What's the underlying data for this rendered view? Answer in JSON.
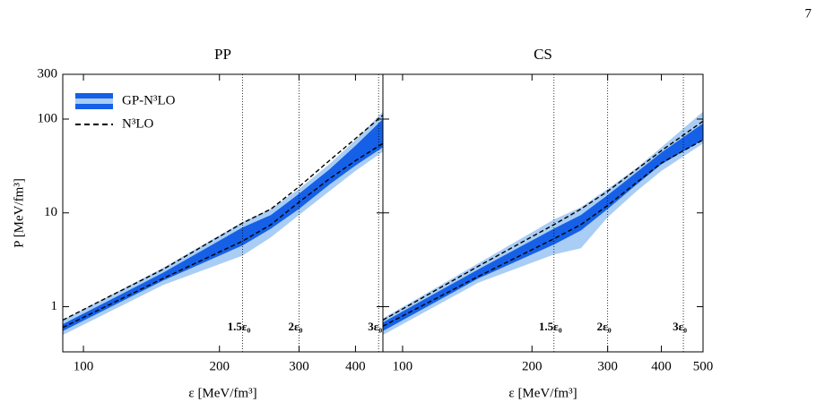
{
  "page_number": "7",
  "chart_data": [
    {
      "type": "band",
      "title": "PP",
      "xlabel": "ε [MeV/fm³]",
      "ylabel": "P [MeV/fm³]",
      "log_x": true,
      "log_y": true,
      "xlim": [
        90,
        460
      ],
      "ylim": [
        0.33,
        300
      ],
      "xticks": [
        100,
        200,
        300,
        400
      ],
      "yticks": [
        1,
        10,
        100,
        300
      ],
      "x": [
        90,
        150,
        225,
        260,
        300,
        350,
        400,
        460
      ],
      "bands": [
        {
          "color": "#a9cdf4",
          "low": [
            0.5,
            1.7,
            3.5,
            5.5,
            9.5,
            17,
            28,
            45
          ],
          "high": [
            0.72,
            2.6,
            8,
            11,
            18,
            33,
            60,
            120
          ]
        },
        {
          "color": "#1560e6",
          "low": [
            0.55,
            1.9,
            4.5,
            6.8,
            11,
            20,
            32,
            50
          ],
          "high": [
            0.65,
            2.3,
            7,
            9.5,
            16,
            29,
            52,
            100
          ]
        }
      ],
      "lines": [
        {
          "color": "#000000",
          "values": [
            0.72,
            2.5,
            7.8,
            11,
            19,
            36,
            62,
            110
          ]
        },
        {
          "color": "#000000",
          "values": [
            0.6,
            2.0,
            5.0,
            7.5,
            13,
            23,
            36,
            55
          ]
        }
      ],
      "vlines": [
        {
          "value": 225,
          "label": "1.5ε₀"
        },
        {
          "value": 300,
          "label": "2ε₀"
        },
        {
          "value": 450,
          "label": "3ε₀"
        }
      ],
      "legend": [
        {
          "name": "GP-N³LO",
          "colors": [
            "#1560e6",
            "#a9cdf4"
          ]
        },
        {
          "name": "N³LO",
          "color": "#000000"
        }
      ]
    },
    {
      "type": "band",
      "title": "CS",
      "xlabel": "ε [MeV/fm³]",
      "log_x": true,
      "log_y": true,
      "xlim": [
        90,
        500
      ],
      "ylim": [
        0.33,
        300
      ],
      "xticks": [
        100,
        200,
        300,
        400,
        500
      ],
      "yticks": [
        1,
        10,
        100,
        300
      ],
      "x": [
        90,
        150,
        225,
        260,
        300,
        350,
        400,
        500
      ],
      "bands": [
        {
          "color": "#a9cdf4",
          "low": [
            0.5,
            1.8,
            3.6,
            4.2,
            9,
            17,
            28,
            55
          ],
          "high": [
            0.75,
            2.9,
            8.5,
            11.5,
            18,
            30,
            50,
            120
          ]
        },
        {
          "color": "#1560e6",
          "low": [
            0.55,
            2.0,
            4.6,
            6.5,
            11,
            20,
            33,
            60
          ],
          "high": [
            0.68,
            2.5,
            6.8,
            9.5,
            15.5,
            27,
            44,
            90
          ]
        }
      ],
      "lines": [
        {
          "color": "#000000",
          "values": [
            0.72,
            2.7,
            7.5,
            11,
            17,
            29,
            46,
            95
          ]
        },
        {
          "color": "#000000",
          "values": [
            0.62,
            2.1,
            5.3,
            7.5,
            12,
            21,
            34,
            60
          ]
        }
      ],
      "vlines": [
        {
          "value": 225,
          "label": "1.5ε₀"
        },
        {
          "value": 300,
          "label": "2ε₀"
        },
        {
          "value": 450,
          "label": "3ε₀"
        }
      ]
    }
  ]
}
